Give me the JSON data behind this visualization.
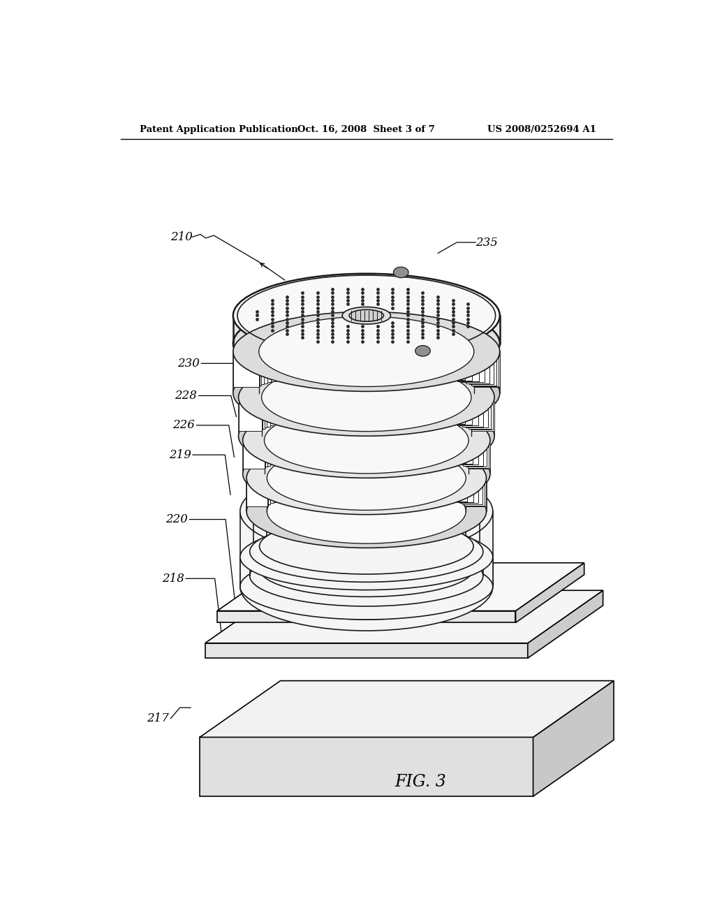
{
  "header_left": "Patent Application Publication",
  "header_mid": "Oct. 16, 2008  Sheet 3 of 7",
  "header_right": "US 2008/0252694 A1",
  "fig_label": "FIG. 3",
  "bg_color": "#ffffff",
  "line_color": "#1a1a1a",
  "gray_light": "#f0f0f0",
  "gray_mid": "#d8d8d8",
  "gray_dark": "#b0b0b0"
}
